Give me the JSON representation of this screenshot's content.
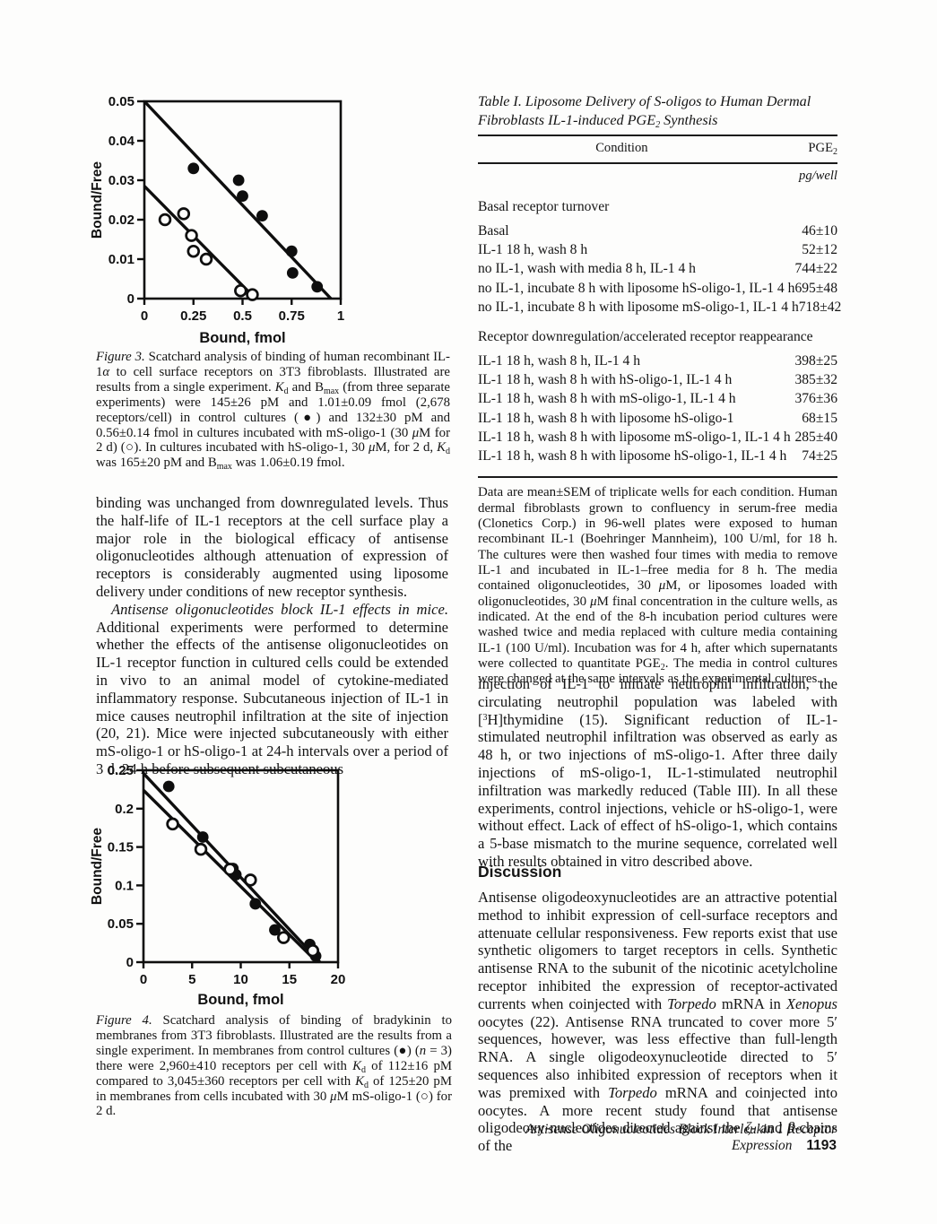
{
  "left_column": {
    "figure3_caption_html": "<i>Figure 3.</i> Scatchard analysis of binding of human recombinant IL-1<i>α</i> to cell surface receptors on 3T3 fibroblasts. Illustrated are results from a single experiment. <i>K</i><sub>d</sub> and B<sub>max</sub> (from three separate experiments) were 145±26 pM and 1.01±0.09 fmol (2,678 receptors/cell) in control cultures (●) and 132±30 pM and 0.56±0.14 fmol in cultures incubated with mS-oligo-1 (30 <i>μ</i>M for 2 d) (○). In cultures incubated with hS-oligo-1, 30 <i>μ</i>M, for 2 d, <i>K</i><sub>d</sub> was 165±20 pM and B<sub>max</sub> was 1.06±0.19 fmol.",
    "para1_html": "binding was unchanged from downregulated levels. Thus the half-life of IL-1 receptors at the cell surface play a major role in the biological efficacy of antisense oligonucleotides although attenuation of expression of receptors is considerably augmented using liposome delivery under conditions of new receptor synthesis.",
    "para2_html": "<i>Antisense oligonucleotides block IL-1 effects in mice.</i> Additional experiments were performed to determine whether the effects of the antisense oligonucleotides on IL-1 receptor function in cultured cells could be extended in vivo to an animal model of cytokine-mediated inflammatory response. Subcutaneous injection of IL-1 in mice causes neutrophil infiltration at the site of injection (20, 21). Mice were injected subcutaneously with either mS-oligo-1 or hS-oligo-1 at 24-h intervals over a period of 3 d. 24 h before subsequent subcutaneous",
    "figure4_caption_html": "<i>Figure 4.</i> Scatchard analysis of binding of bradykinin to membranes from 3T3 fibroblasts. Illustrated are the results from a single experiment. In membranes from control cultures (●) (<i>n</i> = 3) there were 2,960±410 receptors per cell with <i>K</i><sub>d</sub> of 112±16 pM compared to 3,045±360 receptors per cell with <i>K</i><sub>d</sub> of 125±20 pM in membranes from cells incubated with 30 <i>μ</i>M mS-oligo-1 (○) for 2 d."
  },
  "table": {
    "title_html": "<i>Table I. Liposome Delivery of S-oligos to Human Dermal Fibroblasts IL-1-induced PGE<sub>2</sub> Synthesis</i>",
    "col1_header": "Condition",
    "col2_header_html": "PGE<sub>2</sub>",
    "unit_html": "<i>pg/well</i>",
    "sections": [
      {
        "heading": "Basal receptor turnover",
        "rows": [
          {
            "condition": "Basal",
            "value": "46±10"
          },
          {
            "condition": "IL-1 18 h, wash 8 h",
            "value": "52±12"
          },
          {
            "condition": "no IL-1, wash with media 8 h, IL-1 4 h",
            "value": "744±22"
          },
          {
            "condition": "no IL-1, incubate 8 h with liposome hS-oligo-1, IL-1 4 h",
            "value": "695±48"
          },
          {
            "condition": "no IL-1, incubate 8 h with liposome mS-oligo-1, IL-1 4 h",
            "value": "718±42"
          }
        ]
      },
      {
        "heading": "Receptor downregulation/accelerated receptor reappearance",
        "rows": [
          {
            "condition": "IL-1 18 h, wash 8 h, IL-1 4 h",
            "value": "398±25"
          },
          {
            "condition": "IL-1 18 h, wash 8 h with hS-oligo-1, IL-1 4 h",
            "value": "385±32"
          },
          {
            "condition": "IL-1 18 h, wash 8 h with mS-oligo-1, IL-1 4 h",
            "value": "376±36"
          },
          {
            "condition": "IL-1 18 h, wash 8 h with liposome hS-oligo-1",
            "value": "68±15"
          },
          {
            "condition": "IL-1 18 h, wash 8 h with liposome mS-oligo-1, IL-1 4 h",
            "value": "285±40"
          },
          {
            "condition": "IL-1 18 h, wash 8 h with liposome hS-oligo-1, IL-1 4 h",
            "value": "74±25"
          }
        ]
      }
    ],
    "footnote_html": "Data are mean±SEM of triplicate wells for each condition. Human dermal fibroblasts grown to confluency in serum-free media (Clonetics Corp.) in 96-well plates were exposed to human recombinant IL-1 (Boehringer Mannheim), 100 U/ml, for 18 h. The cultures were then washed four times with media to remove IL-1 and incubated in IL-1–free media for 8 h. The media contained oligonucleotides, 30 <i>μ</i>M, or liposomes loaded with oligonucleotides, 30 <i>μ</i>M final concentration in the culture wells, as indicated. At the end of the 8-h incubation period cultures were washed twice and media replaced with culture media containing IL-1 (100 U/ml). Incubation was for 4 h, after which supernatants were collected to quantitate PGE<sub>2</sub>. The media in control cultures were changed at the same intervals as the experimental cultures."
  },
  "right_column": {
    "para1_html": "injection of IL-1 to initiate neutrophil infiltration, the circulating neutrophil population was labeled with [<sup>3</sup>H]thymidine (15). Significant reduction of IL-1-stimulated neutrophil infiltration was observed as early as 48 h, or two injections of mS-oligo-1. After three daily injections of mS-oligo-1, IL-1-stimulated neutrophil infiltration was markedly reduced (Table III). In all these experiments, control injections, vehicle or hS-oligo-1, were without effect. Lack of effect of hS-oligo-1, which contains a 5-base mismatch to the murine sequence, correlated well with results obtained in vitro described above.",
    "discussion_heading": "Discussion",
    "discussion_para_html": "Antisense oligodeoxynucleotides are an attractive potential method to inhibit expression of cell-surface receptors and attenuate cellular responsiveness. Few reports exist that use synthetic oligomers to target receptors in cells. Synthetic antisense RNA to the subunit of the nicotinic acetylcholine receptor inhibited the expression of receptor-activated currents when coinjected with <i>Torpedo</i> mRNA in <i>Xenopus</i> oocytes (22). Antisense RNA truncated to cover more 5′ sequences, however, was less effective than full-length RNA. A single oligodeoxynucleotide directed to 5′ sequences also inhibited expression of receptors when it was premixed with <i>Torpedo</i> mRNA and coinjected into oocytes. A more recent study found that antisense oligodeoxy-nucleotides directed against the <i>ζ</i>- and <i>β</i>-chains of the"
  },
  "footer": {
    "title": "Antisense Oligonucleotides Block Interleukin 1 Receptor Expression",
    "page_number": "1193"
  },
  "chart_data": [
    {
      "id": "figure3",
      "type": "scatter",
      "title": "",
      "xlabel": "Bound, fmol",
      "ylabel": "Bound/Free",
      "xlim": [
        0,
        1
      ],
      "ylim": [
        0,
        0.05
      ],
      "xticks": [
        0,
        0.25,
        0.5,
        0.75,
        1
      ],
      "xtick_labels": [
        "0",
        "0.25",
        "0.5",
        "0.75",
        "1"
      ],
      "yticks": [
        0,
        0.01,
        0.02,
        0.03,
        0.04,
        0.05
      ],
      "ytick_labels": [
        "0",
        "0.01",
        "0.02",
        "0.03",
        "0.04",
        "0.05"
      ],
      "grid": false,
      "legend": "none",
      "series": [
        {
          "name": "control cultures",
          "marker": "filled-circle",
          "points": [
            [
              0.25,
              0.033
            ],
            [
              0.48,
              0.03
            ],
            [
              0.5,
              0.026
            ],
            [
              0.6,
              0.021
            ],
            [
              0.75,
              0.012
            ],
            [
              0.755,
              0.0065
            ],
            [
              0.88,
              0.003
            ]
          ]
        },
        {
          "name": "mS-oligo-1 30 uM for 2 d",
          "marker": "open-circle",
          "points": [
            [
              0.105,
              0.02
            ],
            [
              0.2,
              0.0215
            ],
            [
              0.24,
              0.016
            ],
            [
              0.25,
              0.012
            ],
            [
              0.315,
              0.01
            ],
            [
              0.49,
              0.002
            ],
            [
              0.55,
              0.001
            ]
          ]
        }
      ],
      "fit_lines": [
        {
          "name": "control fit",
          "from": [
            0,
            0.05
          ],
          "to": [
            0.95,
            0
          ]
        },
        {
          "name": "mS-oligo-1 fit",
          "from": [
            0,
            0.0285
          ],
          "to": [
            0.565,
            0
          ]
        }
      ]
    },
    {
      "id": "figure4",
      "type": "scatter",
      "title": "",
      "xlabel": "Bound, fmol",
      "ylabel": "Bound/Free",
      "xlim": [
        0,
        20
      ],
      "ylim": [
        0,
        0.25
      ],
      "xticks": [
        0,
        5,
        10,
        15,
        20
      ],
      "xtick_labels": [
        "0",
        "5",
        "10",
        "15",
        "20"
      ],
      "yticks": [
        0,
        0.05,
        0.1,
        0.15,
        0.2,
        0.25
      ],
      "ytick_labels": [
        "0",
        "0.05",
        "0.1",
        "0.15",
        "0.2",
        "0.25"
      ],
      "grid": false,
      "legend": "none",
      "series": [
        {
          "name": "control membranes",
          "marker": "filled-circle",
          "points": [
            [
              2.6,
              0.229
            ],
            [
              6.1,
              0.163
            ],
            [
              9.2,
              0.122
            ],
            [
              9.5,
              0.114
            ],
            [
              11.5,
              0.076
            ],
            [
              13.5,
              0.042
            ],
            [
              17.1,
              0.023
            ],
            [
              17.7,
              0.008
            ]
          ]
        },
        {
          "name": "mS-oligo-1 30 uM for 2 d",
          "marker": "open-circle",
          "points": [
            [
              3.0,
              0.18
            ],
            [
              5.9,
              0.147
            ],
            [
              8.9,
              0.121
            ],
            [
              11.0,
              0.107
            ],
            [
              14.4,
              0.032
            ],
            [
              17.4,
              0.015
            ]
          ]
        }
      ],
      "fit_lines": [
        {
          "name": "control fit",
          "from": [
            0,
            0.246
          ],
          "to": [
            18.15,
            0
          ]
        },
        {
          "name": "mS-oligo-1 fit",
          "from": [
            0,
            0.224
          ],
          "to": [
            17.85,
            0
          ]
        }
      ]
    }
  ]
}
